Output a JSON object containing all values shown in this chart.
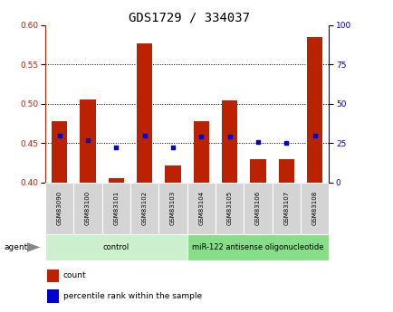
{
  "title": "GDS1729 / 334037",
  "samples": [
    "GSM83090",
    "GSM83100",
    "GSM83101",
    "GSM83102",
    "GSM83103",
    "GSM83104",
    "GSM83105",
    "GSM83106",
    "GSM83107",
    "GSM83108"
  ],
  "red_values": [
    0.478,
    0.505,
    0.406,
    0.577,
    0.422,
    0.478,
    0.504,
    0.43,
    0.43,
    0.585
  ],
  "blue_values": [
    30,
    27,
    22,
    30,
    22,
    29,
    29,
    26,
    25,
    30
  ],
  "ylim_left": [
    0.4,
    0.6
  ],
  "ylim_right": [
    0,
    100
  ],
  "yticks_left": [
    0.4,
    0.45,
    0.5,
    0.55,
    0.6
  ],
  "yticks_right": [
    0,
    25,
    50,
    75,
    100
  ],
  "grid_lines": [
    0.45,
    0.5,
    0.55
  ],
  "groups": [
    {
      "label": "control",
      "start": 0,
      "end": 5,
      "color": "#c8f0c8"
    },
    {
      "label": "miR-122 antisense oligonucleotide",
      "start": 5,
      "end": 10,
      "color": "#90e090"
    }
  ],
  "bar_color": "#bb2200",
  "blue_color": "#0000cc",
  "bar_width": 0.55,
  "bar_bottom": 0.4,
  "title_fontsize": 10,
  "tick_fontsize": 6.5,
  "sample_fontsize": 5.0,
  "group_fontsize": 6.0,
  "legend_fontsize": 6.5,
  "agent_label": "agent",
  "legend_count": "count",
  "legend_percentile": "percentile rank within the sample",
  "sample_box_color": "#d4d4d4",
  "control_group_color": "#ccf0cc",
  "mir_group_color": "#88dd88"
}
